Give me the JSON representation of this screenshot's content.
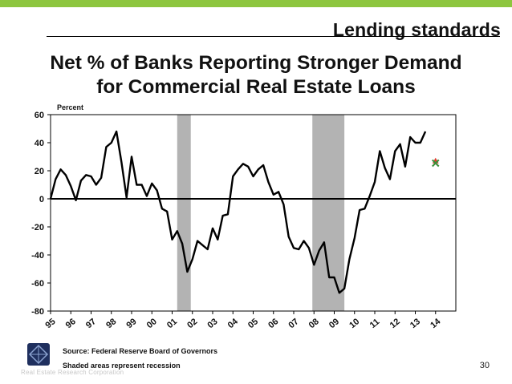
{
  "header": {
    "section_title": "Lending standards",
    "title_line1": "Net % of Banks Reporting Stronger Demand",
    "title_line2": "for Commercial Real Estate Loans"
  },
  "footer": {
    "source": "Source: Federal Reserve Board of Governors",
    "note": "Shaded areas represent recession",
    "page_number": "30",
    "logo_text": "Real Estate Research Corporation"
  },
  "colors": {
    "accent_bar": "#8dc63f",
    "line": "#000000",
    "recession_shade": "#b3b3b3",
    "marker_red": "#e03c31",
    "marker_green": "#3a8f3a"
  },
  "chart_data": {
    "type": "line",
    "ylabel": "Percent",
    "ylim": [
      -80,
      60
    ],
    "yticks": [
      60,
      40,
      20,
      0,
      -20,
      -40,
      -60,
      -80
    ],
    "xlim": [
      1995,
      2015
    ],
    "xtick_labels": [
      "95",
      "96",
      "97",
      "98",
      "99",
      "00",
      "01",
      "02",
      "03",
      "04",
      "05",
      "06",
      "07",
      "08",
      "09",
      "10",
      "11",
      "12",
      "13",
      "14"
    ],
    "grid": false,
    "recessions": [
      [
        2001.25,
        2001.92
      ],
      [
        2007.92,
        2009.5
      ]
    ],
    "series": [
      {
        "values": [
          [
            1995.0,
            0
          ],
          [
            1995.25,
            14
          ],
          [
            1995.5,
            21
          ],
          [
            1995.75,
            17
          ],
          [
            1996.0,
            9
          ],
          [
            1996.25,
            -1
          ],
          [
            1996.5,
            13
          ],
          [
            1996.75,
            17
          ],
          [
            1997.0,
            16
          ],
          [
            1997.25,
            10
          ],
          [
            1997.5,
            15
          ],
          [
            1997.75,
            37
          ],
          [
            1998.0,
            40
          ],
          [
            1998.25,
            48
          ],
          [
            1998.5,
            26
          ],
          [
            1998.75,
            1
          ],
          [
            1999.0,
            30
          ],
          [
            1999.25,
            10
          ],
          [
            1999.5,
            10
          ],
          [
            1999.75,
            2
          ],
          [
            2000.0,
            11
          ],
          [
            2000.25,
            6
          ],
          [
            2000.5,
            -7
          ],
          [
            2000.75,
            -9
          ],
          [
            2001.0,
            -29
          ],
          [
            2001.25,
            -23
          ],
          [
            2001.5,
            -32
          ],
          [
            2001.75,
            -52
          ],
          [
            2002.0,
            -43
          ],
          [
            2002.25,
            -30
          ],
          [
            2002.5,
            -33
          ],
          [
            2002.75,
            -36
          ],
          [
            2003.0,
            -21
          ],
          [
            2003.25,
            -29
          ],
          [
            2003.5,
            -12
          ],
          [
            2003.75,
            -11
          ],
          [
            2004.0,
            16
          ],
          [
            2004.25,
            21
          ],
          [
            2004.5,
            25
          ],
          [
            2004.75,
            23
          ],
          [
            2005.0,
            16
          ],
          [
            2005.25,
            21
          ],
          [
            2005.5,
            24
          ],
          [
            2005.75,
            12
          ],
          [
            2006.0,
            3
          ],
          [
            2006.25,
            5
          ],
          [
            2006.5,
            -4
          ],
          [
            2006.75,
            -27
          ],
          [
            2007.0,
            -35
          ],
          [
            2007.25,
            -36
          ],
          [
            2007.5,
            -30
          ],
          [
            2007.75,
            -35
          ],
          [
            2008.0,
            -47
          ],
          [
            2008.25,
            -37
          ],
          [
            2008.5,
            -31
          ],
          [
            2008.75,
            -56
          ],
          [
            2009.0,
            -56
          ],
          [
            2009.25,
            -67
          ],
          [
            2009.5,
            -64
          ],
          [
            2009.75,
            -43
          ],
          [
            2010.0,
            -28
          ],
          [
            2010.25,
            -8
          ],
          [
            2010.5,
            -7
          ],
          [
            2010.75,
            2
          ],
          [
            2011.0,
            12
          ],
          [
            2011.25,
            34
          ],
          [
            2011.5,
            22
          ],
          [
            2011.75,
            14
          ],
          [
            2012.0,
            34
          ],
          [
            2012.25,
            39
          ],
          [
            2012.5,
            23
          ],
          [
            2012.75,
            44
          ],
          [
            2013.0,
            40
          ],
          [
            2013.25,
            40
          ],
          [
            2013.5,
            48
          ]
        ]
      }
    ],
    "markers": [
      {
        "x": 2014.0,
        "y": 27,
        "shape": "triangle",
        "color": "#e03c31"
      },
      {
        "x": 2014.0,
        "y": 26,
        "shape": "x",
        "color": "#3a8f3a"
      }
    ]
  }
}
